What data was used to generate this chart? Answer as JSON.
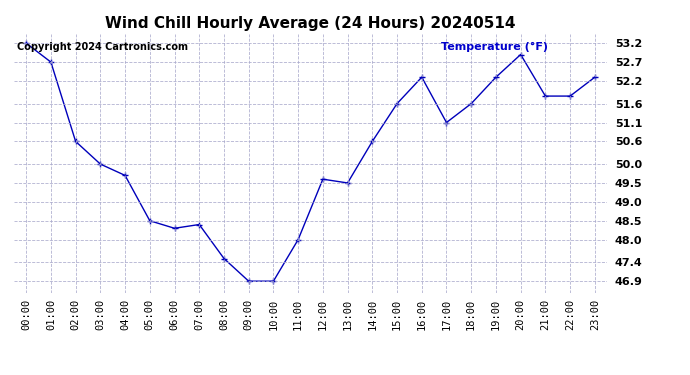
{
  "title": "Wind Chill Hourly Average (24 Hours) 20240514",
  "ylabel": "Temperature (°F)",
  "copyright": "Copyright 2024 Cartronics.com",
  "line_color": "#0000bb",
  "background_color": "#ffffff",
  "grid_color": "#aaaacc",
  "hours": [
    "00:00",
    "01:00",
    "02:00",
    "03:00",
    "04:00",
    "05:00",
    "06:00",
    "07:00",
    "08:00",
    "09:00",
    "10:00",
    "11:00",
    "12:00",
    "13:00",
    "14:00",
    "15:00",
    "16:00",
    "17:00",
    "18:00",
    "19:00",
    "20:00",
    "21:00",
    "22:00",
    "23:00"
  ],
  "values": [
    53.2,
    52.7,
    50.6,
    50.0,
    49.7,
    48.5,
    48.3,
    48.4,
    47.5,
    46.9,
    46.9,
    48.0,
    49.6,
    49.5,
    50.6,
    51.6,
    52.3,
    51.1,
    51.6,
    52.3,
    52.9,
    51.8,
    51.8,
    52.3
  ],
  "ylim_min": 46.6,
  "ylim_max": 53.45,
  "yticks": [
    46.9,
    47.4,
    48.0,
    48.5,
    49.0,
    49.5,
    50.0,
    50.6,
    51.1,
    51.6,
    52.2,
    52.7,
    53.2
  ],
  "ylabel_color": "#0000cc",
  "title_fontsize": 11,
  "copyright_fontsize": 7,
  "tick_fontsize": 7.5,
  "ytick_fontsize": 8
}
